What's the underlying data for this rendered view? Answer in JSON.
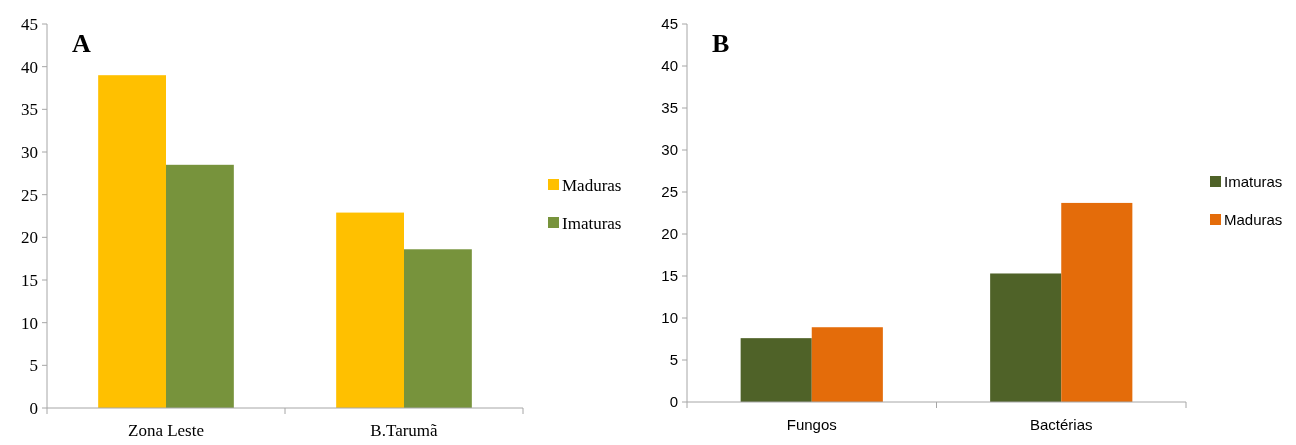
{
  "chart_data": [
    {
      "type": "bar",
      "title": "A",
      "categories": [
        "Zona Leste",
        "B.Tarumã"
      ],
      "series": [
        {
          "name": "Maduras",
          "color": "#ffc000",
          "values": [
            39,
            22.9
          ]
        },
        {
          "name": "Imaturas",
          "color": "#77933c",
          "values": [
            28.5,
            18.6
          ]
        }
      ],
      "ylim": [
        0,
        45
      ],
      "yticks": [
        0,
        5,
        10,
        15,
        20,
        25,
        30,
        35,
        40,
        45
      ],
      "grid": false,
      "legend": "right"
    },
    {
      "type": "bar",
      "title": "B",
      "categories": [
        "Fungos",
        "Bactérias"
      ],
      "series": [
        {
          "name": "Imaturas",
          "color": "#4f6228",
          "values": [
            7.6,
            15.3
          ]
        },
        {
          "name": "Maduras",
          "color": "#e46c0a",
          "values": [
            8.9,
            23.7
          ]
        }
      ],
      "ylim": [
        0,
        45
      ],
      "yticks": [
        0,
        5,
        10,
        15,
        20,
        25,
        30,
        35,
        40,
        45
      ],
      "grid": false,
      "legend": "right"
    }
  ]
}
